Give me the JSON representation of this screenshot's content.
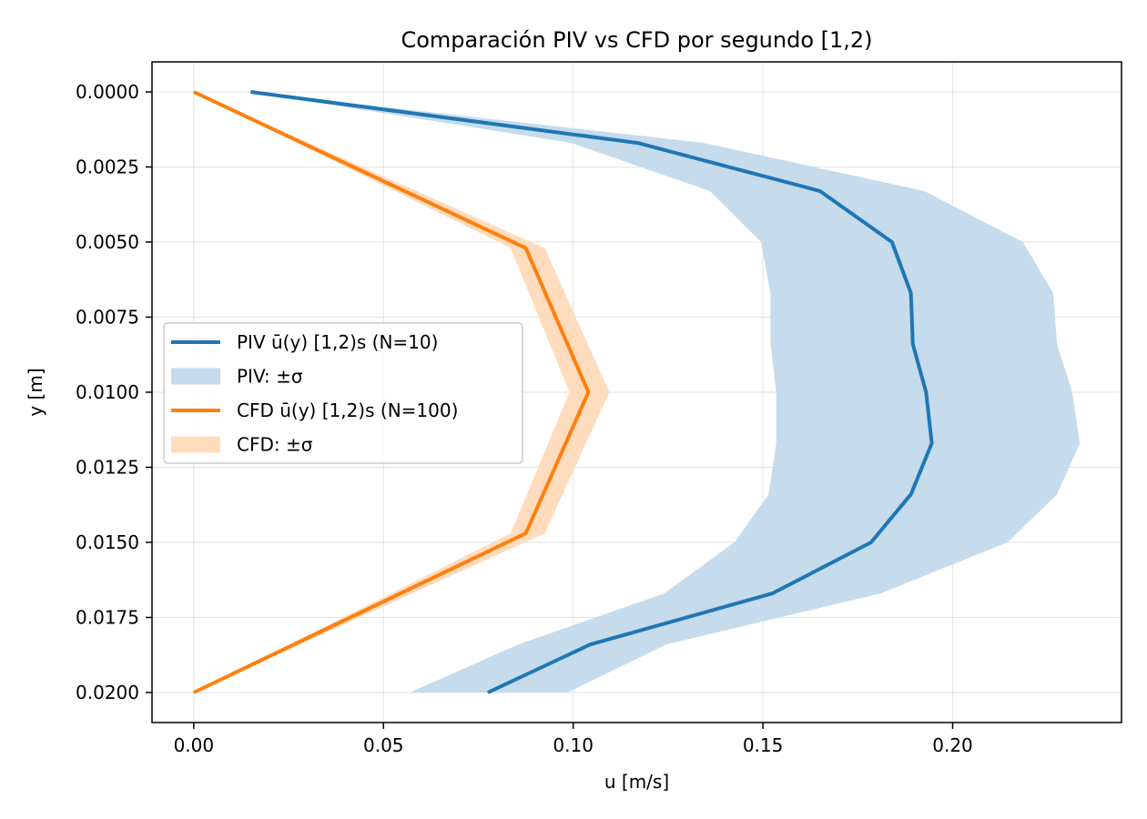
{
  "chart_data": {
    "type": "line",
    "title": "Comparación PIV vs CFD por segundo [1,2)",
    "xlabel": "u [m/s]",
    "ylabel": "y [m]",
    "xlim": [
      -0.011,
      0.2445
    ],
    "ylim": [
      0.021,
      -0.001
    ],
    "y_inverted": true,
    "grid": true,
    "legend_position": "center-left",
    "x_ticks": [
      0.0,
      0.05,
      0.1,
      0.15,
      0.2
    ],
    "x_tick_labels": [
      "0.00",
      "0.05",
      "0.10",
      "0.15",
      "0.20"
    ],
    "y_ticks": [
      0.0,
      0.0025,
      0.005,
      0.0075,
      0.01,
      0.0125,
      0.015,
      0.0175,
      0.02
    ],
    "y_tick_labels": [
      "0.0000",
      "0.0025",
      "0.0050",
      "0.0075",
      "0.0100",
      "0.0125",
      "0.0150",
      "0.0175",
      "0.0200"
    ],
    "series": [
      {
        "name": "PIV ū(y) [1,2)s (N=10)",
        "band_name": "PIV: ±σ",
        "color": "#1f77b4",
        "band_color": "#c6dbec",
        "y": [
          0.0,
          0.0017,
          0.0033,
          0.005,
          0.0067,
          0.0084,
          0.01,
          0.0117,
          0.0134,
          0.015,
          0.0167,
          0.0184,
          0.02
        ],
        "u": [
          0.015,
          0.117,
          0.165,
          0.184,
          0.189,
          0.1895,
          0.193,
          0.1945,
          0.189,
          0.1785,
          0.1525,
          0.1045,
          0.0775
        ],
        "lower": [
          0.015,
          0.0995,
          0.136,
          0.1495,
          0.152,
          0.152,
          0.1535,
          0.1535,
          0.1515,
          0.1425,
          0.124,
          0.0855,
          0.057
        ],
        "upper": [
          0.015,
          0.1345,
          0.1925,
          0.2185,
          0.2265,
          0.2275,
          0.2315,
          0.2335,
          0.2275,
          0.2145,
          0.181,
          0.1245,
          0.0985
        ]
      },
      {
        "name": "CFD ū(y) [1,2)s (N=100)",
        "band_name": "CFD: ±σ",
        "color": "#ff7f0e",
        "band_color": "#ffdcbd",
        "y": [
          0.0,
          0.0052,
          0.01,
          0.0147,
          0.02
        ],
        "u": [
          0.0,
          0.0875,
          0.104,
          0.0875,
          0.0
        ],
        "lower": [
          0.0,
          0.0835,
          0.099,
          0.0835,
          0.0
        ],
        "upper": [
          0.0,
          0.0925,
          0.1095,
          0.0925,
          0.0
        ]
      }
    ]
  }
}
